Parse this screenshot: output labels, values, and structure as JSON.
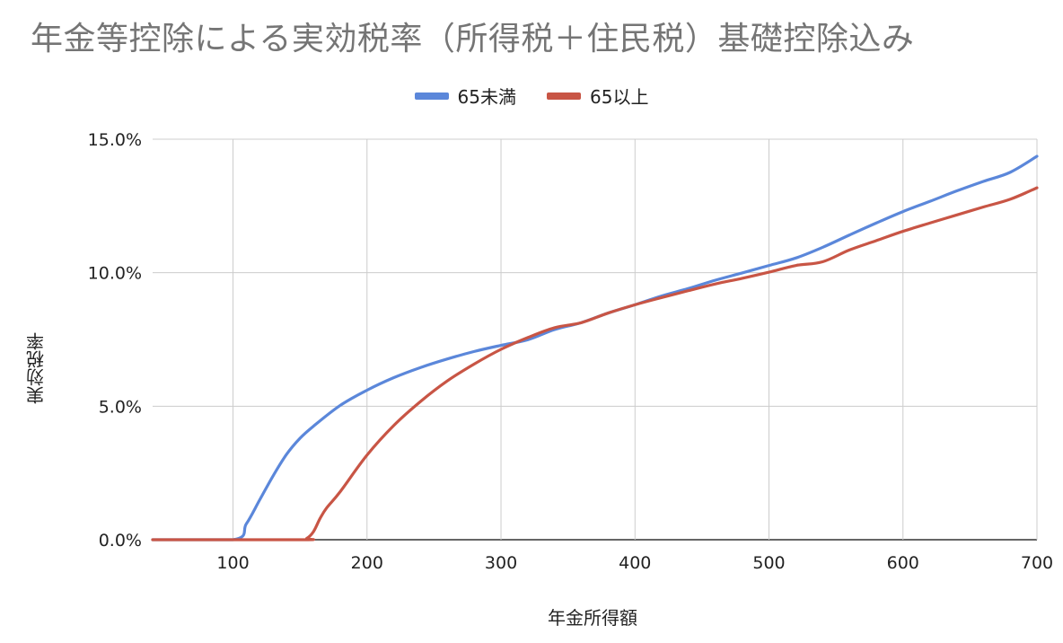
{
  "chart_data": {
    "type": "line",
    "title": "年金等控除による実効税率（所得税＋住民税）基礎控除込み",
    "xlabel": "年金所得額",
    "ylabel": "実効税率",
    "xlim": [
      40,
      700
    ],
    "ylim": [
      0,
      0.15
    ],
    "x_ticks": [
      100,
      200,
      300,
      400,
      500,
      600,
      700
    ],
    "y_ticks": [
      0,
      0.05,
      0.1,
      0.15
    ],
    "x_tick_labels": [
      "100",
      "200",
      "300",
      "400",
      "500",
      "600",
      "700"
    ],
    "y_tick_labels": [
      "0.0%",
      "5.0%",
      "10.0%",
      "15.0%"
    ],
    "grid": true,
    "legend_position": "top",
    "series": [
      {
        "name": "65未満",
        "color": "#5b87da",
        "x": [
          40,
          100,
          110,
          120,
          130,
          140,
          150,
          160,
          180,
          200,
          220,
          240,
          260,
          280,
          300,
          320,
          340,
          360,
          380,
          400,
          420,
          440,
          460,
          480,
          500,
          520,
          540,
          560,
          580,
          600,
          620,
          640,
          660,
          680,
          700
        ],
        "y": [
          0.0,
          0.0,
          0.006,
          0.015,
          0.024,
          0.032,
          0.038,
          0.0425,
          0.0503,
          0.056,
          0.0607,
          0.0645,
          0.0677,
          0.0705,
          0.0728,
          0.0749,
          0.0787,
          0.0813,
          0.0849,
          0.088,
          0.0913,
          0.0941,
          0.0972,
          0.0999,
          0.1027,
          0.1055,
          0.1095,
          0.1141,
          0.1186,
          0.1229,
          0.1267,
          0.1306,
          0.1342,
          0.1376,
          0.1436
        ]
      },
      {
        "name": "65以上",
        "color": "#c85545",
        "x": [
          40,
          150,
          155,
          160,
          165,
          170,
          180,
          200,
          220,
          240,
          260,
          280,
          300,
          320,
          340,
          360,
          380,
          400,
          420,
          440,
          460,
          480,
          500,
          520,
          540,
          560,
          580,
          600,
          620,
          640,
          660,
          680,
          700
        ],
        "y": [
          0.0,
          0.0,
          0.0005,
          0.003,
          0.008,
          0.012,
          0.018,
          0.0317,
          0.0428,
          0.0518,
          0.0595,
          0.0658,
          0.0713,
          0.0757,
          0.0794,
          0.0813,
          0.0849,
          0.088,
          0.0907,
          0.0933,
          0.0958,
          0.0979,
          0.1002,
          0.1027,
          0.1041,
          0.1085,
          0.112,
          0.1155,
          0.1186,
          0.1216,
          0.1246,
          0.1275,
          0.1318
        ]
      }
    ]
  }
}
